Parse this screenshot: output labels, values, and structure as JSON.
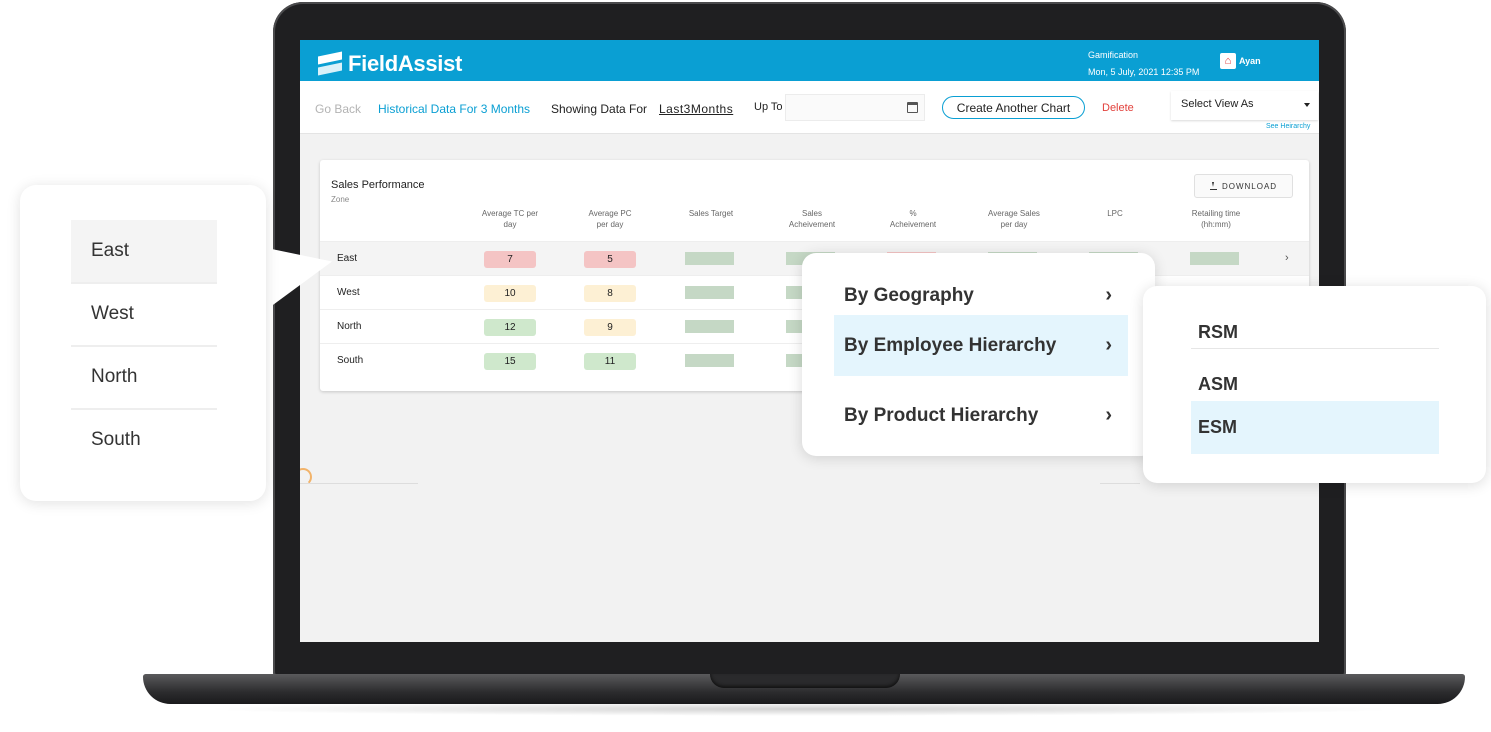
{
  "header": {
    "logo_text": "FieldAssist",
    "module": "Gamification",
    "datetime": "Mon, 5 July, 2021 12:35 PM",
    "user_name": "Ayan"
  },
  "toolbar": {
    "go_back": "Go Back",
    "historical": "Historical Data For 3 Months",
    "showing_label": "Showing Data For",
    "showing_value": "Last3Months",
    "upto_label": "Up To",
    "upto_value": "",
    "create_chart": "Create Another Chart",
    "delete": "Delete",
    "select_view": "Select View As",
    "see_hierarchy": "See Heirarchy"
  },
  "card": {
    "title": "Sales Performance",
    "subtitle": "Zone",
    "download": "DOWNLOAD",
    "columns": [
      {
        "line1": "Average TC per",
        "line2": "day"
      },
      {
        "line1": "Average PC",
        "line2": "per day"
      },
      {
        "line1": "Sales Target",
        "line2": ""
      },
      {
        "line1": "Sales",
        "line2": "Acheivement"
      },
      {
        "line1": "%",
        "line2": "Acheivement"
      },
      {
        "line1": "Average Sales",
        "line2": "per day"
      },
      {
        "line1": "LPC",
        "line2": ""
      },
      {
        "line1": "Retailing time",
        "line2": "(hh:mm)"
      }
    ],
    "rows": [
      {
        "zone": "East",
        "tc": "7",
        "pc": "5"
      },
      {
        "zone": "West",
        "tc": "10",
        "pc": "8"
      },
      {
        "zone": "North",
        "tc": "12",
        "pc": "9"
      },
      {
        "zone": "South",
        "tc": "15",
        "pc": "11"
      }
    ],
    "colors": {
      "red": "#f4c4c4",
      "yellow": "#fdf0d4",
      "green": "#cfe8cc",
      "bar": "#c5d8c5"
    }
  },
  "zone_panel": {
    "items": [
      "East",
      "West",
      "North",
      "South"
    ],
    "selected": "East"
  },
  "hierarchy_menu": {
    "items": [
      "By Geography",
      "By Employee Hierarchy",
      "By Product Hierarchy"
    ],
    "selected": "By Employee Hierarchy"
  },
  "role_menu": {
    "items": [
      "RSM",
      "ASM",
      "ESM"
    ],
    "selected": "ESM"
  },
  "accent": "#0a9fd3"
}
